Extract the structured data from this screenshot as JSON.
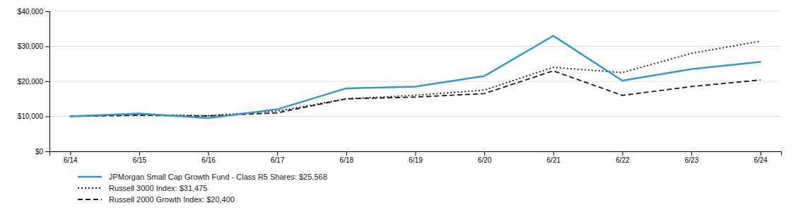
{
  "chart_data": {
    "type": "line",
    "categories": [
      "6/14",
      "6/15",
      "6/16",
      "6/17",
      "6/18",
      "6/19",
      "6/20",
      "6/21",
      "6/22",
      "6/23",
      "6/24"
    ],
    "series": [
      {
        "name": "JPMorgan Small Cap Growth Fund - Class R5 Shares: $25,568",
        "color": "#3399cc",
        "line_style": "solid",
        "values": [
          10000,
          10800,
          9500,
          12000,
          18000,
          18500,
          21500,
          33000,
          20200,
          23500,
          25568
        ]
      },
      {
        "name": "Russell 3000 Index: $31,475",
        "color": "#1a1a1a",
        "line_style": "dotted",
        "values": [
          10000,
          10500,
          10200,
          11500,
          15000,
          16000,
          17500,
          24000,
          22500,
          28000,
          31475
        ]
      },
      {
        "name": "Russell 2000 Growth Index: $20,400",
        "color": "#1a1a1a",
        "line_style": "dashed",
        "values": [
          10000,
          10300,
          10100,
          11000,
          15000,
          15500,
          16500,
          23000,
          16000,
          18500,
          20400
        ]
      }
    ],
    "ylim": [
      0,
      40000
    ],
    "yticks": [
      {
        "value": 0,
        "label": "$0"
      },
      {
        "value": 10000,
        "label": "$10,000"
      },
      {
        "value": 20000,
        "label": "$20,000"
      },
      {
        "value": 30000,
        "label": "$30,000"
      },
      {
        "value": 40000,
        "label": "$40,000"
      }
    ],
    "grid": true,
    "legend": "bottom"
  }
}
